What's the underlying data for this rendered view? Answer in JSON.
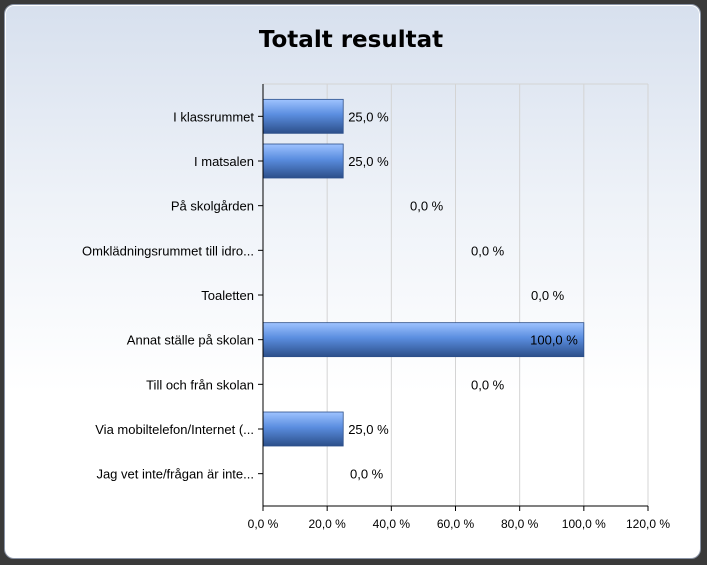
{
  "chart_data": {
    "type": "bar",
    "orientation": "horizontal",
    "title": "Totalt resultat",
    "categories": [
      "I klassrummet",
      "I matsalen",
      "På skolgården",
      "Omklädningsrummet till idro...",
      "Toaletten",
      "Annat ställe på skolan",
      "Till och från skolan",
      "Via mobiltelefon/Internet (...",
      "Jag vet inte/frågan är inte..."
    ],
    "values": [
      25.0,
      25.0,
      0.0,
      0.0,
      0.0,
      100.0,
      0.0,
      25.0,
      0.0
    ],
    "value_labels": [
      "25,0 %",
      "25,0 %",
      "0,0 %",
      "0,0 %",
      "0,0 %",
      "100,0 %",
      "0,0 %",
      "25,0 %",
      "0,0 %"
    ],
    "xlim": [
      0,
      120
    ],
    "x_ticks": [
      0,
      20,
      40,
      60,
      80,
      100,
      120
    ],
    "x_tick_labels": [
      "0,0 %",
      "20,0 %",
      "40,0 %",
      "60,0 %",
      "80,0 %",
      "100,0 %",
      "120,0 %"
    ],
    "grid": true,
    "legend": "none",
    "colors": {
      "bar_light": "#9fc3ff",
      "bar_mid": "#5a8ddf",
      "bar_dark": "#2c4f8a",
      "grid": "#d4d4d4",
      "axis": "#000000"
    }
  }
}
